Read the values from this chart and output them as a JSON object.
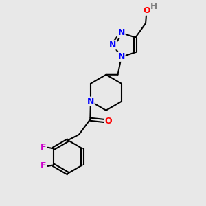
{
  "background_color": "#e8e8e8",
  "bond_color": "#000000",
  "bond_width": 1.5,
  "atom_colors": {
    "N": "#0000ff",
    "O": "#ff0000",
    "F": "#cc00cc",
    "H": "#808080",
    "C": "#000000"
  },
  "font_size_atom": 9
}
